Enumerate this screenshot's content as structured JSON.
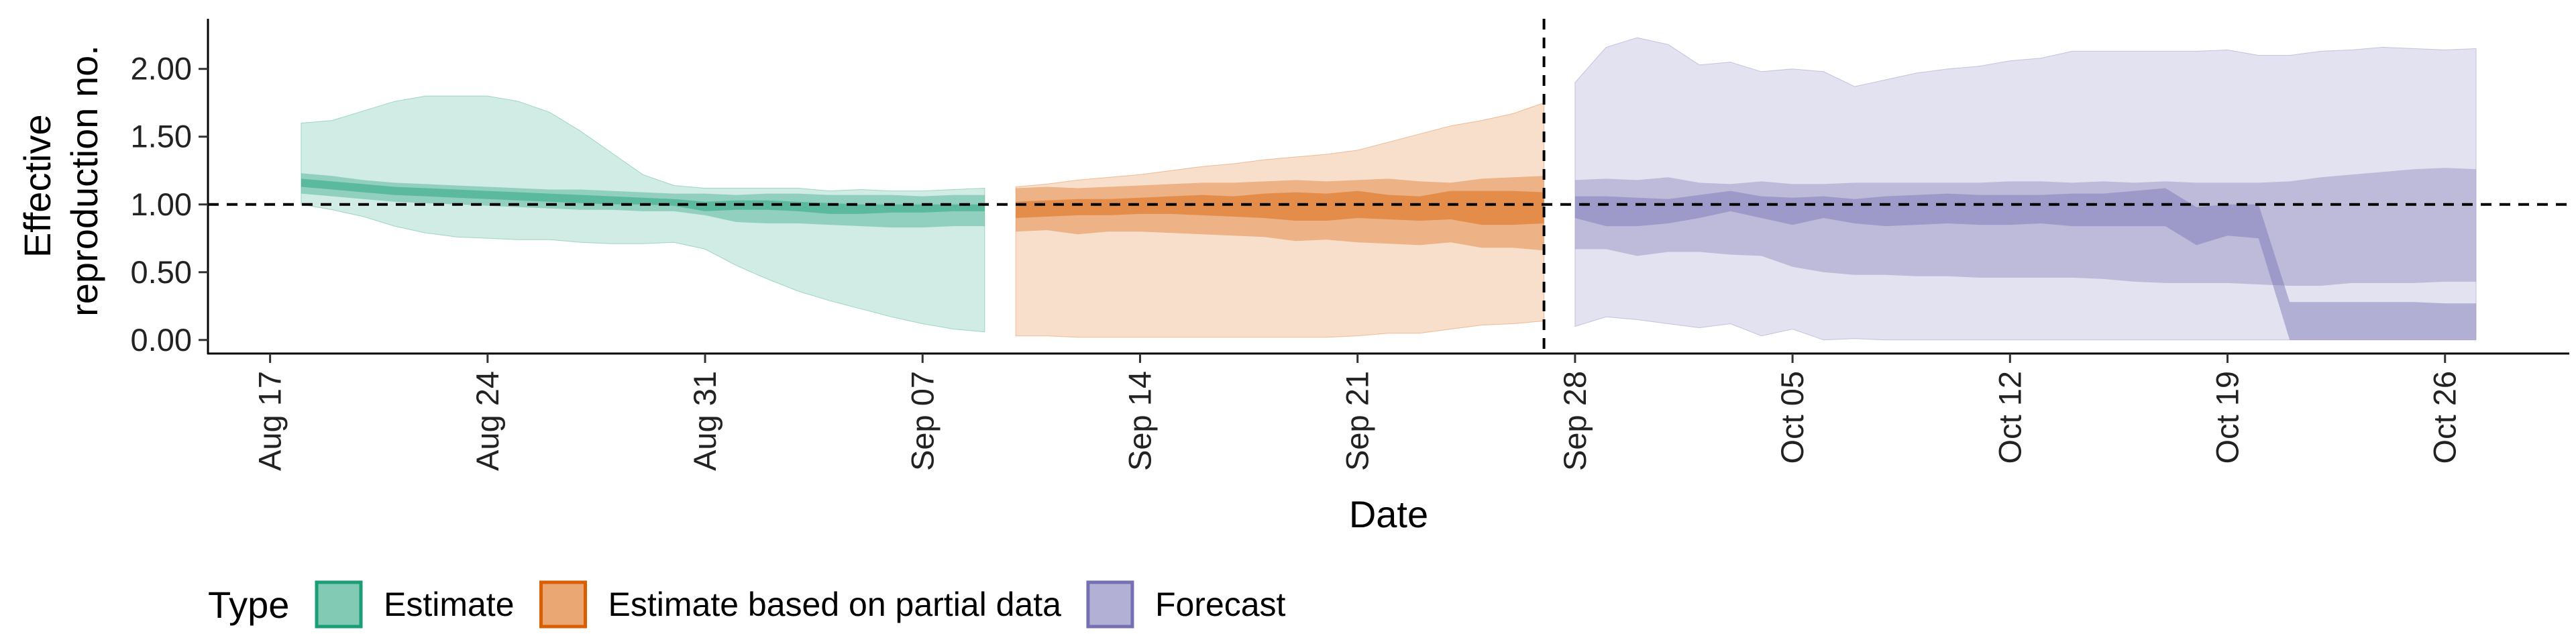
{
  "chart_data": {
    "type": "area",
    "title": "",
    "xlabel": "Date",
    "ylabel": [
      "Effective",
      "reproduction no."
    ],
    "x_tick_labels": [
      "Aug 17",
      "Aug 24",
      "Aug 31",
      "Sep 07",
      "Sep 14",
      "Sep 21",
      "Sep 28",
      "Oct 05",
      "Oct 12",
      "Oct 19",
      "Oct 26"
    ],
    "x_tick_dates": [
      "2020-08-17",
      "2020-08-24",
      "2020-08-31",
      "2020-09-07",
      "2020-09-14",
      "2020-09-21",
      "2020-09-28",
      "2020-10-05",
      "2020-10-12",
      "2020-10-19",
      "2020-10-26"
    ],
    "xlim": [
      "2020-08-15",
      "2020-10-30"
    ],
    "y_ticks": [
      0,
      0.5,
      1,
      1.5,
      2
    ],
    "y_tick_labels": [
      "0.00",
      "0.50",
      "1.00",
      "1.50",
      "2.00"
    ],
    "ylim": [
      -0.1,
      2.35
    ],
    "reference_lines": {
      "horizontal_y": 1.0,
      "vertical_date": "2020-09-27"
    },
    "grid": false,
    "legend": {
      "title": "Type",
      "position": "bottom",
      "items": [
        {
          "label": "Estimate",
          "color": "#1b9e77"
        },
        {
          "label": "Estimate based on partial data",
          "color": "#d95f02"
        },
        {
          "label": "Forecast",
          "color": "#7570b3"
        }
      ]
    },
    "series": [
      {
        "name": "Estimate",
        "color": "#1b9e77",
        "dates": [
          "2020-08-18",
          "2020-08-19",
          "2020-08-20",
          "2020-08-21",
          "2020-08-22",
          "2020-08-23",
          "2020-08-24",
          "2020-08-25",
          "2020-08-26",
          "2020-08-27",
          "2020-08-28",
          "2020-08-29",
          "2020-08-30",
          "2020-08-31",
          "2020-09-01",
          "2020-09-02",
          "2020-09-03",
          "2020-09-04",
          "2020-09-05",
          "2020-09-06",
          "2020-09-07",
          "2020-09-08",
          "2020-09-09"
        ],
        "lower_90": [
          1.0,
          0.96,
          0.91,
          0.84,
          0.79,
          0.76,
          0.75,
          0.74,
          0.74,
          0.72,
          0.71,
          0.71,
          0.72,
          0.67,
          0.55,
          0.45,
          0.36,
          0.29,
          0.23,
          0.17,
          0.12,
          0.08,
          0.06
        ],
        "upper_90": [
          1.6,
          1.62,
          1.69,
          1.76,
          1.8,
          1.8,
          1.8,
          1.76,
          1.68,
          1.54,
          1.38,
          1.22,
          1.14,
          1.12,
          1.12,
          1.12,
          1.12,
          1.1,
          1.11,
          1.1,
          1.1,
          1.11,
          1.12
        ],
        "lower_50": [
          1.08,
          1.06,
          1.04,
          1.02,
          1.01,
          1.0,
          0.99,
          0.98,
          0.97,
          0.96,
          0.96,
          0.95,
          0.95,
          0.92,
          0.87,
          0.86,
          0.86,
          0.85,
          0.84,
          0.83,
          0.83,
          0.84,
          0.84
        ],
        "upper_50": [
          1.23,
          1.21,
          1.18,
          1.16,
          1.15,
          1.14,
          1.13,
          1.12,
          1.11,
          1.11,
          1.1,
          1.09,
          1.08,
          1.08,
          1.07,
          1.08,
          1.08,
          1.07,
          1.07,
          1.07,
          1.06,
          1.07,
          1.07
        ],
        "lower_20": [
          1.13,
          1.11,
          1.09,
          1.07,
          1.06,
          1.05,
          1.04,
          1.03,
          1.02,
          1.01,
          1.0,
          1.0,
          0.99,
          0.95,
          0.96,
          0.96,
          0.95,
          0.93,
          0.93,
          0.94,
          0.94,
          0.95,
          0.95
        ],
        "upper_20": [
          1.19,
          1.17,
          1.15,
          1.13,
          1.12,
          1.11,
          1.1,
          1.09,
          1.08,
          1.07,
          1.06,
          1.05,
          1.04,
          1.02,
          1.03,
          1.03,
          1.02,
          1.01,
          1.0,
          1.0,
          1.0,
          1.0,
          1.0
        ]
      },
      {
        "name": "Estimate based on partial data",
        "color": "#d95f02",
        "dates": [
          "2020-09-10",
          "2020-09-11",
          "2020-09-12",
          "2020-09-13",
          "2020-09-14",
          "2020-09-15",
          "2020-09-16",
          "2020-09-17",
          "2020-09-18",
          "2020-09-19",
          "2020-09-20",
          "2020-09-21",
          "2020-09-22",
          "2020-09-23",
          "2020-09-24",
          "2020-09-25",
          "2020-09-26",
          "2020-09-27"
        ],
        "lower_90": [
          0.03,
          0.03,
          0.02,
          0.02,
          0.02,
          0.02,
          0.02,
          0.02,
          0.02,
          0.02,
          0.02,
          0.03,
          0.05,
          0.05,
          0.08,
          0.11,
          0.12,
          0.14
        ],
        "upper_90": [
          1.13,
          1.15,
          1.18,
          1.2,
          1.22,
          1.25,
          1.28,
          1.3,
          1.33,
          1.35,
          1.37,
          1.4,
          1.46,
          1.52,
          1.58,
          1.62,
          1.67,
          1.75
        ],
        "lower_50": [
          0.8,
          0.81,
          0.78,
          0.8,
          0.8,
          0.79,
          0.78,
          0.77,
          0.76,
          0.73,
          0.74,
          0.72,
          0.71,
          0.7,
          0.72,
          0.68,
          0.68,
          0.66
        ],
        "upper_50": [
          1.12,
          1.13,
          1.12,
          1.13,
          1.14,
          1.15,
          1.16,
          1.16,
          1.17,
          1.18,
          1.17,
          1.18,
          1.19,
          1.17,
          1.16,
          1.19,
          1.2,
          1.21
        ],
        "lower_20": [
          0.9,
          0.91,
          0.92,
          0.92,
          0.93,
          0.93,
          0.92,
          0.91,
          0.9,
          0.88,
          0.88,
          0.9,
          0.89,
          0.88,
          0.89,
          0.85,
          0.85,
          0.86
        ],
        "upper_20": [
          1.02,
          1.03,
          1.04,
          1.04,
          1.05,
          1.06,
          1.07,
          1.06,
          1.08,
          1.09,
          1.08,
          1.1,
          1.07,
          1.06,
          1.1,
          1.1,
          1.1,
          1.09
        ]
      },
      {
        "name": "Forecast",
        "color": "#7570b3",
        "dates": [
          "2020-09-28",
          "2020-09-29",
          "2020-09-30",
          "2020-10-01",
          "2020-10-02",
          "2020-10-03",
          "2020-10-04",
          "2020-10-05",
          "2020-10-06",
          "2020-10-07",
          "2020-10-08",
          "2020-10-09",
          "2020-10-10",
          "2020-10-11",
          "2020-10-12",
          "2020-10-13",
          "2020-10-14",
          "2020-10-15",
          "2020-10-16",
          "2020-10-17",
          "2020-10-18",
          "2020-10-19",
          "2020-10-20",
          "2020-10-21",
          "2020-10-22",
          "2020-10-23",
          "2020-10-24",
          "2020-10-25",
          "2020-10-26",
          "2020-10-27"
        ],
        "lower_90": [
          0.1,
          0.17,
          0.15,
          0.12,
          0.09,
          0.12,
          0.03,
          0.08,
          0.0,
          0.01,
          0.0,
          0.0,
          0.0,
          0.0,
          0.0,
          0.0,
          0.0,
          0.0,
          0.0,
          0.0,
          0.0,
          0.0,
          0.0,
          0.0,
          0.0,
          0.0,
          0.0,
          0.0,
          0.0,
          0.0
        ],
        "upper_90": [
          1.9,
          2.16,
          2.23,
          2.18,
          2.03,
          2.05,
          1.98,
          2.0,
          1.98,
          1.87,
          1.92,
          1.97,
          2.0,
          2.02,
          2.06,
          2.08,
          2.13,
          2.13,
          2.13,
          2.13,
          2.13,
          2.14,
          2.1,
          2.1,
          2.13,
          2.14,
          2.16,
          2.15,
          2.14,
          2.15
        ],
        "lower_50": [
          0.67,
          0.67,
          0.62,
          0.65,
          0.65,
          0.63,
          0.62,
          0.54,
          0.5,
          0.48,
          0.48,
          0.47,
          0.47,
          0.46,
          0.46,
          0.46,
          0.46,
          0.45,
          0.43,
          0.42,
          0.42,
          0.42,
          0.41,
          0.4,
          0.4,
          0.42,
          0.42,
          0.42,
          0.43,
          0.43
        ],
        "upper_50": [
          1.18,
          1.19,
          1.18,
          1.2,
          1.16,
          1.15,
          1.17,
          1.15,
          1.15,
          1.16,
          1.16,
          1.16,
          1.16,
          1.16,
          1.17,
          1.17,
          1.16,
          1.17,
          1.16,
          1.17,
          1.16,
          1.16,
          1.16,
          1.17,
          1.2,
          1.22,
          1.24,
          1.26,
          1.27,
          1.26
        ],
        "lower_20": [
          0.9,
          0.84,
          0.84,
          0.86,
          0.9,
          0.95,
          0.9,
          0.85,
          0.9,
          0.86,
          0.84,
          0.85,
          0.86,
          0.85,
          0.85,
          0.86,
          0.84,
          0.84,
          0.84,
          0.84,
          0.7,
          0.77,
          0.75,
          0.0,
          0.0,
          0.0,
          0.0,
          0.0,
          0.0,
          0.0
        ],
        "upper_20": [
          1.06,
          1.06,
          1.05,
          1.04,
          1.07,
          1.1,
          1.06,
          1.05,
          1.06,
          1.04,
          1.06,
          1.07,
          1.08,
          1.07,
          1.07,
          1.07,
          1.08,
          1.08,
          1.1,
          1.12,
          0.98,
          1.0,
          1.0,
          0.28,
          0.28,
          0.28,
          0.28,
          0.28,
          0.27,
          0.27
        ]
      }
    ]
  }
}
